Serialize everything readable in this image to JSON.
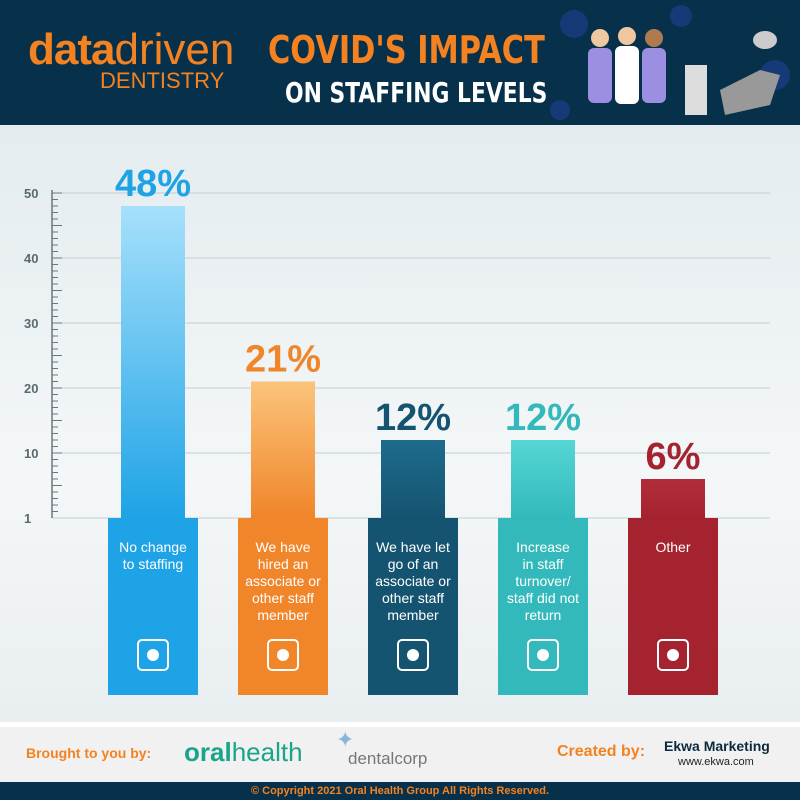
{
  "header": {
    "logo": {
      "data": "data",
      "driven": "driven",
      "sub": "DENTISTRY"
    },
    "title_line1": "COVID'S IMPACT",
    "title_line2": "ON STAFFING LEVELS"
  },
  "chart_data": {
    "type": "bar",
    "title": "COVID'S IMPACT ON STAFFING LEVELS",
    "ylim": [
      0,
      52
    ],
    "yticks": [
      50,
      40,
      30,
      20,
      10,
      1
    ],
    "categories": [
      "No change to staffing",
      "We have hired an associate or other staff member",
      "We have let go of an associate or other staff member",
      "Increase in staff turnover/ staff did not return",
      "Other"
    ],
    "label_lines": [
      [
        "No change",
        "to staffing"
      ],
      [
        "We have",
        "hired an",
        "associate or",
        "other staff",
        "member"
      ],
      [
        "We have let",
        "go of an",
        "associate or",
        "other staff",
        "member"
      ],
      [
        "Increase",
        "in staff",
        "turnover/",
        "staff did not",
        "return"
      ],
      [
        "Other"
      ]
    ],
    "values": [
      48,
      21,
      12,
      12,
      6
    ],
    "value_labels": [
      "48%",
      "21%",
      "12%",
      "12%",
      "6%"
    ],
    "colors": [
      "#1ea3e6",
      "#f0852a",
      "#155470",
      "#33b9bc",
      "#a4232f"
    ],
    "icons": [
      "dental-chair-icon",
      "staff-people-icon",
      "dental-tools-icon",
      "doctor-icon",
      "xray-icon"
    ]
  },
  "footer": {
    "brought": "Brought to you by:",
    "oralhealth_a": "oral",
    "oralhealth_b": "health",
    "dentalcorp": "dentalcorp",
    "created": "Created by:",
    "ekwa": "Ekwa Marketing",
    "ekwa_url": "www.ekwa.com",
    "copyright": "© Copyright 2021 Oral Health Group All Rights Reserved."
  }
}
